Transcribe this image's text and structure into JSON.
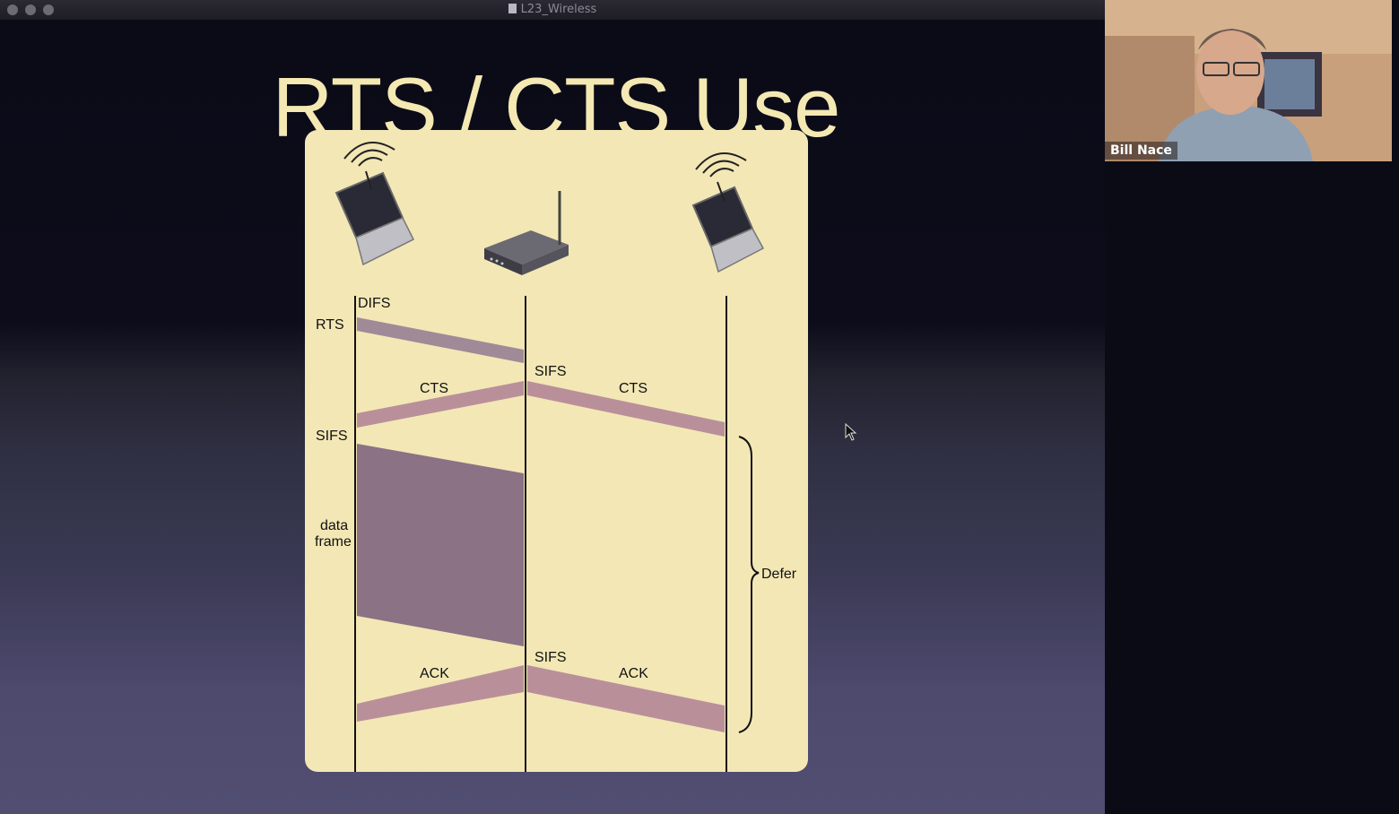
{
  "window": {
    "title": "L23_Wireless"
  },
  "slide": {
    "title": "RTS / CTS Use",
    "labels": {
      "difs": "DIFS",
      "rts": "RTS",
      "sifs_ap_1": "SIFS",
      "cts_left": "CTS",
      "cts_right": "CTS",
      "sifs_left": "SIFS",
      "data_line1": "data",
      "data_line2": "frame",
      "defer": "Defer",
      "sifs_ap_2": "SIFS",
      "ack_left": "ACK",
      "ack_right": "ACK"
    }
  },
  "video": {
    "participant_name": "Bill Nace"
  },
  "colors": {
    "diagram_bg": "#f3e7b5",
    "rts_band": "#a08a98",
    "cts_band": "#b9909a",
    "data_block": "#8b7285",
    "title": "#f4e8b3"
  },
  "icons": [
    "laptop-icon",
    "wireless-router-icon",
    "mouse-cursor-icon",
    "document-icon"
  ]
}
